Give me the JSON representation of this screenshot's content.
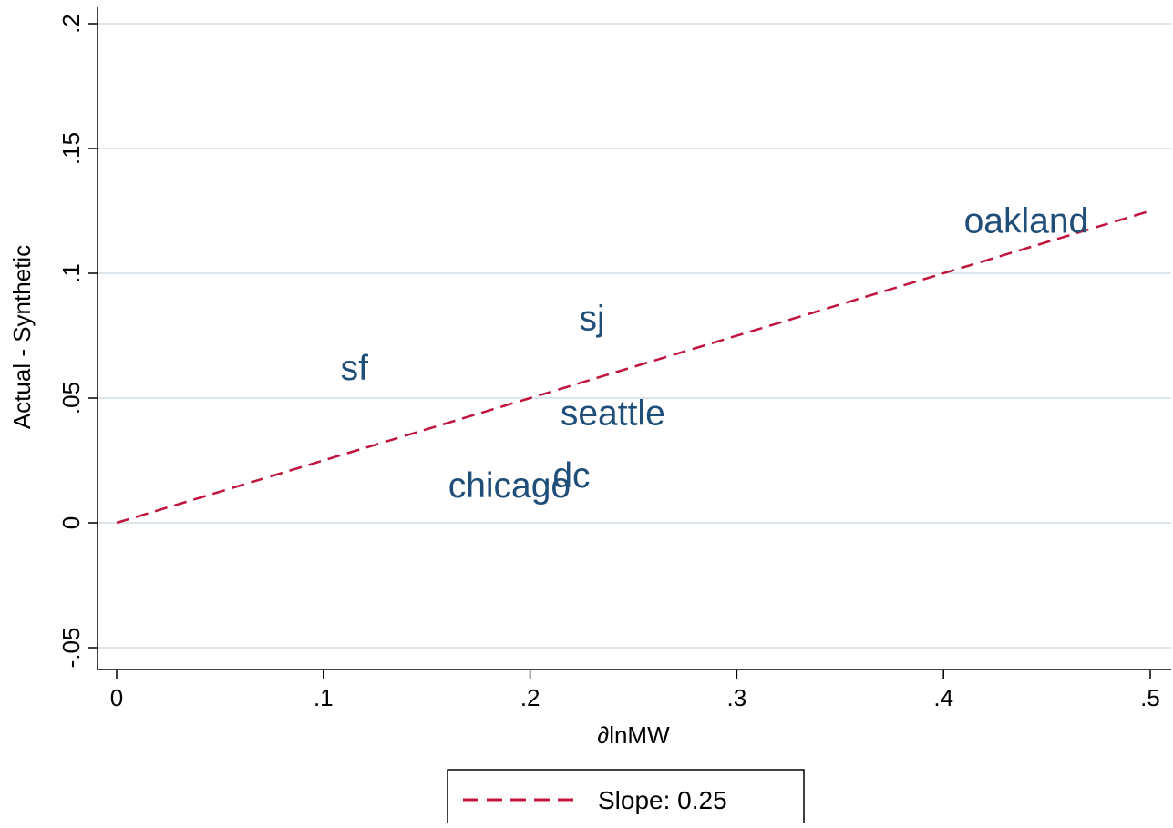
{
  "chart_data": {
    "type": "scatter",
    "title": "",
    "xlabel": "∂lnMW",
    "ylabel": "Actual - Synthetic",
    "xlim": [
      0,
      0.5
    ],
    "ylim": [
      -0.05,
      0.2
    ],
    "xticks": [
      {
        "value": 0,
        "label": "0"
      },
      {
        "value": 0.1,
        "label": ".1"
      },
      {
        "value": 0.2,
        "label": ".2"
      },
      {
        "value": 0.3,
        "label": ".3"
      },
      {
        "value": 0.4,
        "label": ".4"
      },
      {
        "value": 0.5,
        "label": ".5"
      }
    ],
    "yticks": [
      {
        "value": -0.05,
        "label": "-.05"
      },
      {
        "value": 0,
        "label": "0"
      },
      {
        "value": 0.05,
        "label": ".05"
      },
      {
        "value": 0.1,
        "label": ".1"
      },
      {
        "value": 0.15,
        "label": ".15"
      },
      {
        "value": 0.2,
        "label": ".2"
      }
    ],
    "grid": "horizontal",
    "points": [
      {
        "label": "oakland",
        "x": 0.44,
        "y": 0.121
      },
      {
        "label": "sj",
        "x": 0.23,
        "y": 0.082
      },
      {
        "label": "sf",
        "x": 0.115,
        "y": 0.062
      },
      {
        "label": "seattle",
        "x": 0.24,
        "y": 0.044
      },
      {
        "label": "dc",
        "x": 0.22,
        "y": 0.019
      },
      {
        "label": "chicago",
        "x": 0.19,
        "y": 0.015
      }
    ],
    "fit_line": {
      "slope": 0.25,
      "intercept": 0,
      "x_range": [
        0,
        0.5
      ]
    },
    "legend": {
      "position": "bottom",
      "entries": [
        {
          "label": "Slope: 0.25"
        }
      ]
    },
    "colors": {
      "marker_label": "#1f4e79",
      "fit_line": "#c0143c",
      "grid": "#dde6ea",
      "axis": "#000000"
    }
  }
}
